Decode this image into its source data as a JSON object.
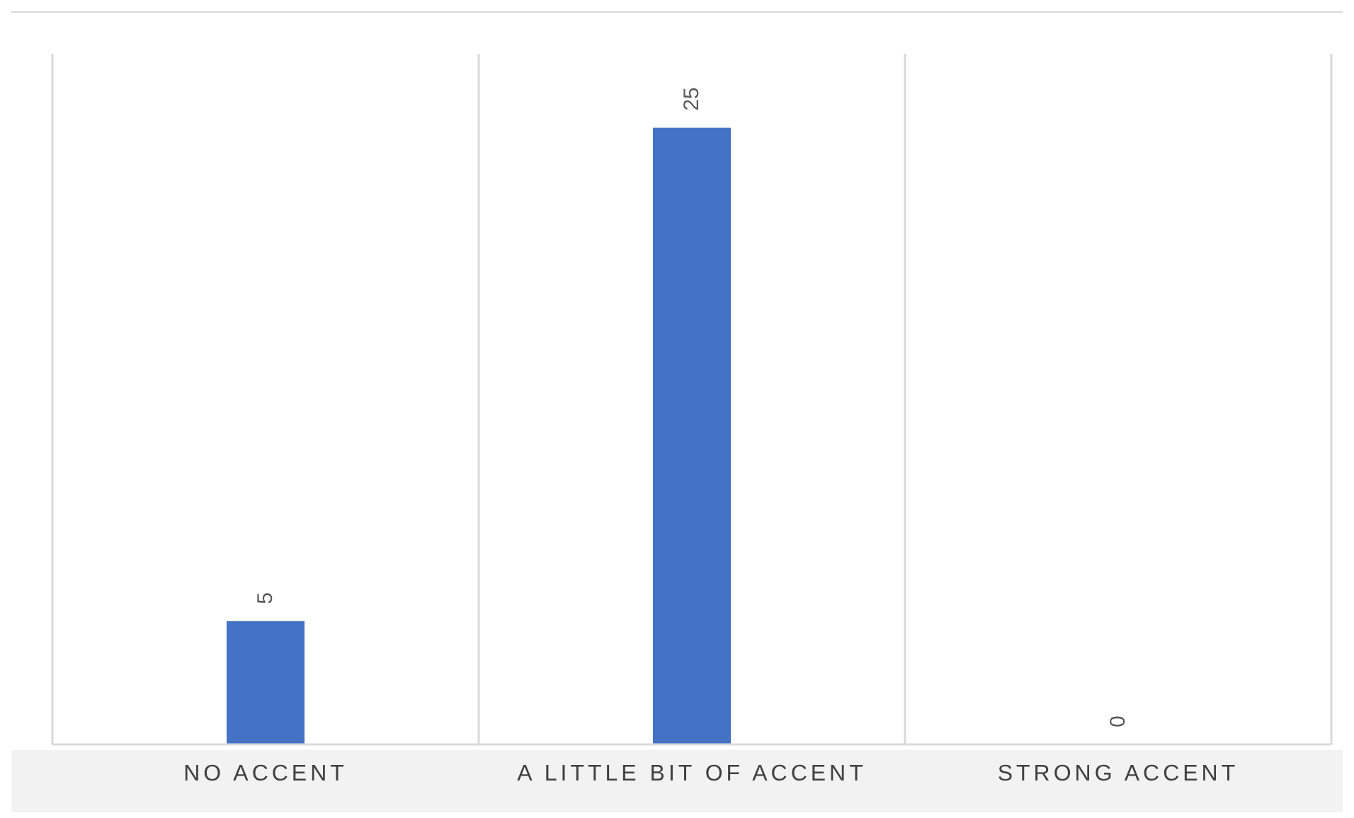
{
  "chart_data": {
    "type": "bar",
    "categories": [
      "NO ACCENT",
      "A LITTLE BIT OF ACCENT",
      "STRONG ACCENT"
    ],
    "values": [
      5,
      25,
      0
    ],
    "color": "#4472c4",
    "data_labels": true,
    "grid": "x",
    "legend": false
  }
}
